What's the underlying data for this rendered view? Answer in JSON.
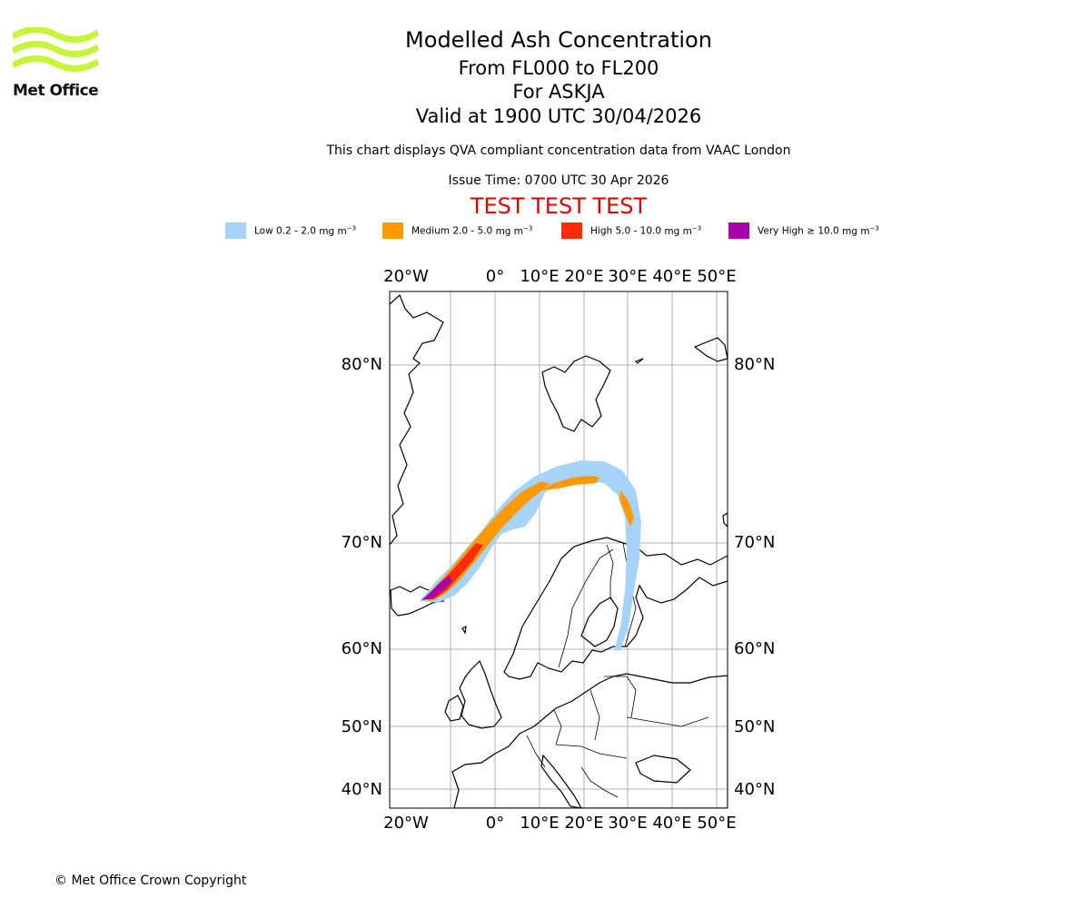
{
  "logo": {
    "text": "Met Office",
    "icon": "met-office-wave-logo"
  },
  "header": {
    "title": "Modelled Ash Concentration",
    "levels": "From FL000 to FL200",
    "volcano": "For ASKJA",
    "valid": "Valid at 1900 UTC 30/04/2026",
    "description": "This chart displays QVA compliant concentration data from VAAC London",
    "issue": "Issue Time: 0700 UTC 30 Apr 2026",
    "test_banner": "TEST TEST TEST"
  },
  "legend": [
    {
      "name": "Low",
      "range": "0.2 - 2.0",
      "unit": "mg m",
      "exp": "−3",
      "color": "#a6d3fa"
    },
    {
      "name": "Medium",
      "range": "2.0 - 5.0",
      "unit": "mg m",
      "exp": "−3",
      "color": "#ff9900"
    },
    {
      "name": "High",
      "range": "5.0 - 10.0",
      "unit": "mg m",
      "exp": "−3",
      "color": "#ff2b0a"
    },
    {
      "name": "Very High",
      "range": "≥  10.0",
      "unit": "mg m",
      "exp": "−3",
      "color": "#aa00aa"
    }
  ],
  "map": {
    "lon_labels": [
      "20°W",
      "0°",
      "10°E",
      "20°E",
      "30°E",
      "40°E",
      "50°E"
    ],
    "lat_labels": [
      "80°N",
      "70°N",
      "60°N",
      "50°N",
      "40°N"
    ]
  },
  "footer": {
    "copyright": "© Met Office Crown Copyright"
  }
}
